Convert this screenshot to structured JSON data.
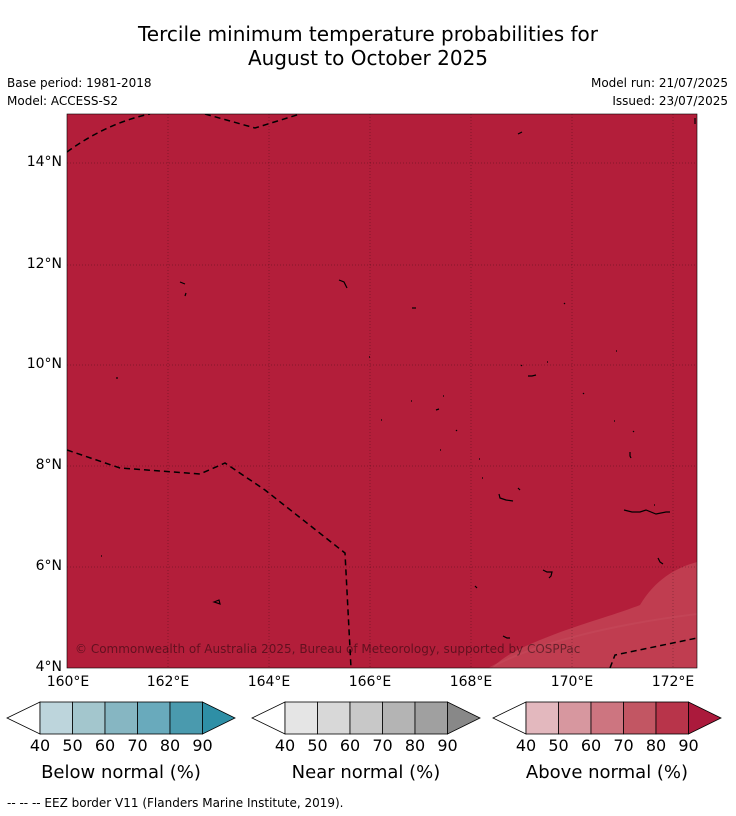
{
  "title_line1": "Tercile minimum temperature probabilities for",
  "title_line2": "August to October 2025",
  "meta": {
    "base_period": "Base period: 1981-2018",
    "model": "Model: ACCESS-S2",
    "model_run": "Model run: 21/07/2025",
    "issued": "Issued: 23/07/2025"
  },
  "map": {
    "y_ticks": [
      "14°N",
      "12°N",
      "10°N",
      "8°N",
      "6°N",
      "4°N"
    ],
    "x_ticks": [
      "160°E",
      "162°E",
      "164°E",
      "166°E",
      "168°E",
      "170°E",
      "172°E"
    ],
    "copyright": "© Commonwealth of Australia 2025, Bureau of Meteorology, supported by COSPPac",
    "colors": {
      "dominant": "#b31e3a",
      "lighter_region": "#c03d50"
    }
  },
  "colorbars": {
    "ticks": [
      "40",
      "50",
      "60",
      "70",
      "80",
      "90"
    ],
    "below": {
      "label": "Below normal (%)",
      "colors": [
        "#ffffff",
        "#bdd5dc",
        "#a3c6cd",
        "#86b6c2",
        "#69aabc",
        "#4a9aae",
        "#2e8fa6"
      ]
    },
    "near": {
      "label": "Near normal (%)",
      "colors": [
        "#ffffff",
        "#e5e5e5",
        "#d8d8d8",
        "#c8c8c8",
        "#b4b4b4",
        "#a0a0a0",
        "#888888"
      ]
    },
    "above": {
      "label": "Above normal (%)",
      "colors": [
        "#ffffff",
        "#e3b8be",
        "#d7979f",
        "#cd7580",
        "#c25663",
        "#b8344a",
        "#ab1a3c"
      ]
    }
  },
  "footnote": "-- -- -- EEZ border V11 (Flanders Marine Institute, 2019)."
}
